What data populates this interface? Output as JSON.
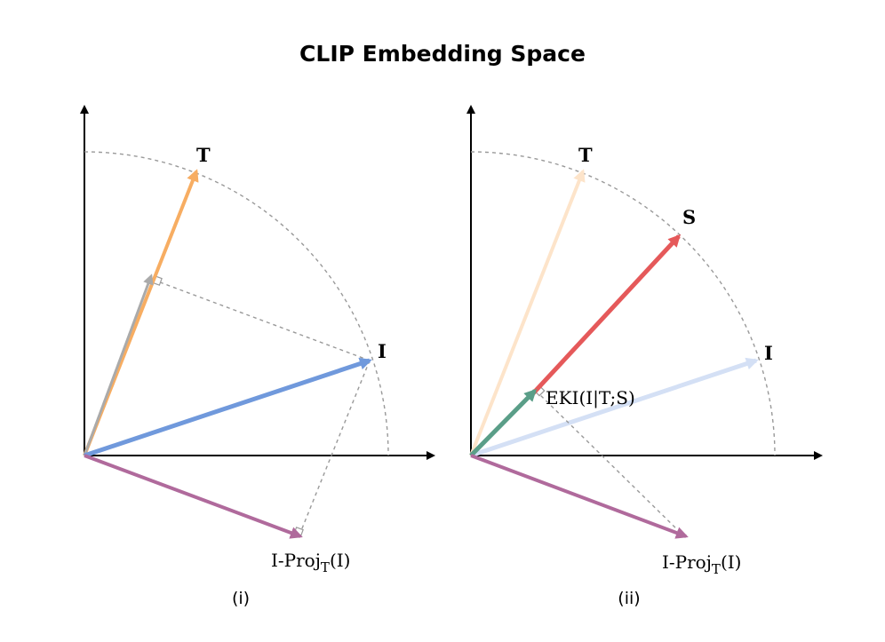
{
  "title": "CLIP Embedding Space",
  "panels": [
    {
      "caption": "(i)",
      "labels": {
        "T": "T",
        "I": "I",
        "proj_main": "I-Proj",
        "proj_sub": "T",
        "proj_tail": "(I)"
      }
    },
    {
      "caption": "(ii)",
      "labels": {
        "T": "T",
        "S": "S",
        "I": "I",
        "eki": "EKI(I|T;S)",
        "proj_main": "I-Proj",
        "proj_sub": "T",
        "proj_tail": "(I)"
      }
    }
  ],
  "colors": {
    "T": "#f7ad62",
    "I": "#7099dc",
    "S": "#e5595a",
    "proj": "#b06a9c",
    "eki": "#5a9e88",
    "text_projection": "#999999",
    "dashed": "#999999",
    "axis": "#000000"
  }
}
